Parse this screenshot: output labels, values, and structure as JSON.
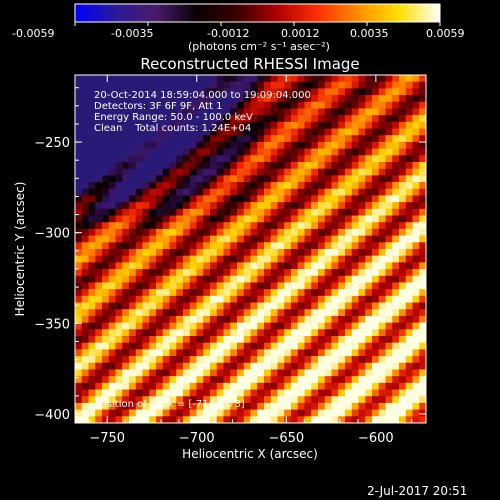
{
  "colorbar": {
    "tick_labels": [
      "-0.0059",
      "-0.0035",
      "-0.0012",
      "0.0012",
      "0.0035",
      "0.0059"
    ],
    "unit_label": "(photons cm⁻² s⁻¹ asec⁻²)",
    "stops": [
      "#0000ff",
      "#2a1a9a",
      "#4a1a6a",
      "#0a0004",
      "#3a0000",
      "#b00000",
      "#ff3000",
      "#ff9000",
      "#ffe000",
      "#ffffff"
    ]
  },
  "chart_data": {
    "type": "heatmap",
    "title": "Reconstructed RHESSI Image",
    "xlabel": "Heliocentric X (arcsec)",
    "ylabel": "Heliocentric Y (arcsec)",
    "xlim": [
      -768,
      -572
    ],
    "ylim": [
      -405,
      -213
    ],
    "x_ticks": [
      -750,
      -700,
      -650,
      -600
    ],
    "y_ticks": [
      -250,
      -300,
      -350,
      -400
    ],
    "x_tick_labels": [
      "−750",
      "−700",
      "−650",
      "−600"
    ],
    "y_tick_labels": [
      "−250",
      "−300",
      "−350",
      "−400"
    ],
    "grid": {
      "nx": 52,
      "ny": 52
    },
    "value_range": [
      -0.0059,
      0.0059
    ],
    "pattern": {
      "description_of_field": "diagonal stripe fringes, bright toward lower-left, dim toward upper-left",
      "peak_position_arcsec": [
        -714,
        -373
      ]
    },
    "annotations": [
      "20-Oct-2014 18:59:04.000 to 19:09:04.000",
      "Detectors: 3F 6F 9F, Att 1",
      "Energy Range: 50.0 - 100.0 keV",
      "Clean    Total counts: 1.24E+04"
    ],
    "peak_label": "Position of Peak = [-714,-373]"
  },
  "footer": {
    "timestamp": "2-Jul-2017 20:51"
  }
}
